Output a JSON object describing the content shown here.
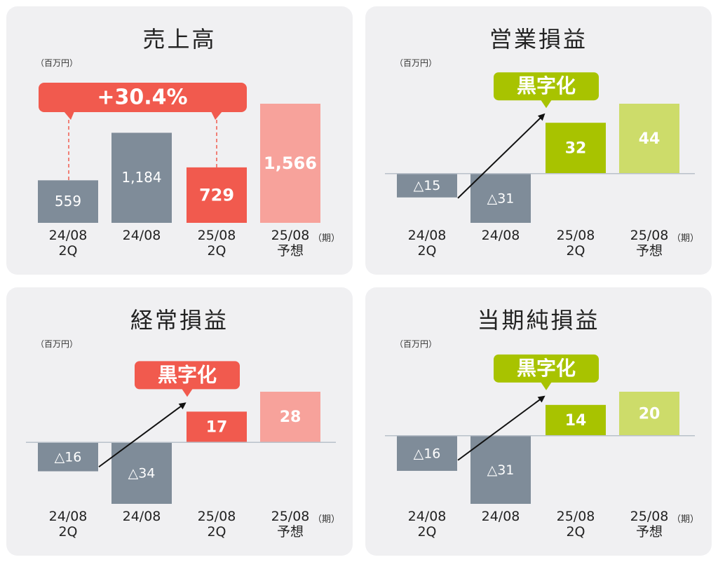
{
  "chart_data": [
    {
      "id": "sales",
      "type": "bar",
      "title": "売上高",
      "unit": "（百万円）",
      "period_label": "（期）",
      "categories": [
        [
          "24/08",
          "2Q"
        ],
        [
          "24/08",
          ""
        ],
        [
          "25/08",
          "2Q"
        ],
        [
          "25/08",
          "予想"
        ]
      ],
      "values": [
        559,
        1184,
        729,
        1566
      ],
      "value_labels": [
        "559",
        "1,184",
        "729",
        "1,566"
      ],
      "ylim": [
        0,
        1800
      ],
      "callout": {
        "text": "+30.4%",
        "color": "#f15a4e",
        "kind": "growth"
      },
      "colors": [
        "#7f8c99",
        "#7f8c99",
        "#f15a4e",
        "#f7a29b"
      ]
    },
    {
      "id": "operating",
      "type": "bar",
      "title": "営業損益",
      "unit": "（百万円）",
      "period_label": "（期）",
      "categories": [
        [
          "24/08",
          "2Q"
        ],
        [
          "24/08",
          ""
        ],
        [
          "25/08",
          "2Q"
        ],
        [
          "25/08",
          "予想"
        ]
      ],
      "values": [
        -15,
        -31,
        32,
        44
      ],
      "value_labels": [
        "△15",
        "△31",
        "32",
        "44"
      ],
      "ylim": [
        -31,
        44
      ],
      "callout": {
        "text": "黒字化",
        "color": "#a8c300",
        "kind": "turnaround"
      },
      "colors": [
        "#7f8c99",
        "#7f8c99",
        "#a8c300",
        "#cddc6a"
      ]
    },
    {
      "id": "ordinary",
      "type": "bar",
      "title": "経常損益",
      "unit": "（百万円）",
      "period_label": "（期）",
      "categories": [
        [
          "24/08",
          "2Q"
        ],
        [
          "24/08",
          ""
        ],
        [
          "25/08",
          "2Q"
        ],
        [
          "25/08",
          "予想"
        ]
      ],
      "values": [
        -16,
        -34,
        17,
        28
      ],
      "value_labels": [
        "△16",
        "△34",
        "17",
        "28"
      ],
      "ylim": [
        -34,
        28
      ],
      "callout": {
        "text": "黒字化",
        "color": "#f15a4e",
        "kind": "turnaround"
      },
      "colors": [
        "#7f8c99",
        "#7f8c99",
        "#f15a4e",
        "#f7a29b"
      ]
    },
    {
      "id": "net",
      "type": "bar",
      "title": "当期純損益",
      "unit": "（百万円）",
      "period_label": "（期）",
      "categories": [
        [
          "24/08",
          "2Q"
        ],
        [
          "24/08",
          ""
        ],
        [
          "25/08",
          "2Q"
        ],
        [
          "25/08",
          "予想"
        ]
      ],
      "values": [
        -16,
        -31,
        14,
        20
      ],
      "value_labels": [
        "△16",
        "△31",
        "14",
        "20"
      ],
      "ylim": [
        -31,
        20
      ],
      "callout": {
        "text": "黒字化",
        "color": "#a8c300",
        "kind": "turnaround"
      },
      "colors": [
        "#7f8c99",
        "#7f8c99",
        "#a8c300",
        "#cddc6a"
      ]
    }
  ]
}
